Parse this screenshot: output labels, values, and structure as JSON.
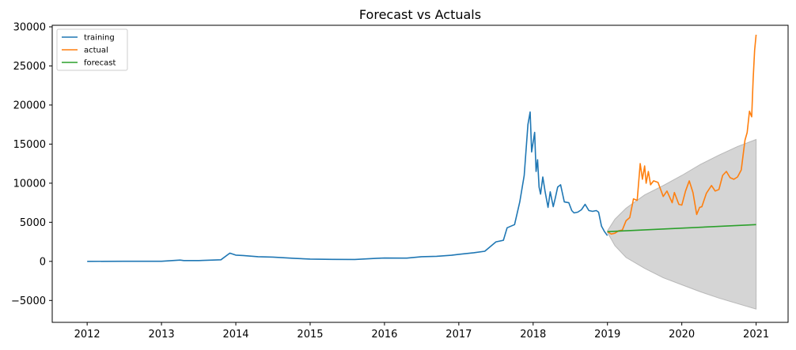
{
  "chart_data": {
    "type": "line",
    "title": "Forecast vs Actuals",
    "xlabel": "",
    "ylabel": "",
    "x_range": [
      2011.53,
      2021.43
    ],
    "y_range": [
      -7800,
      30200
    ],
    "x_ticks": [
      {
        "value": 2012,
        "label": "2012"
      },
      {
        "value": 2013,
        "label": "2013"
      },
      {
        "value": 2014,
        "label": "2014"
      },
      {
        "value": 2015,
        "label": "2015"
      },
      {
        "value": 2016,
        "label": "2016"
      },
      {
        "value": 2017,
        "label": "2017"
      },
      {
        "value": 2018,
        "label": "2018"
      },
      {
        "value": 2019,
        "label": "2019"
      },
      {
        "value": 2020,
        "label": "2020"
      },
      {
        "value": 2021,
        "label": "2021"
      }
    ],
    "y_ticks": [
      {
        "value": -5000,
        "label": "−5000"
      },
      {
        "value": 0,
        "label": "0"
      },
      {
        "value": 5000,
        "label": "5000"
      },
      {
        "value": 10000,
        "label": "10000"
      },
      {
        "value": 15000,
        "label": "15000"
      },
      {
        "value": 20000,
        "label": "20000"
      },
      {
        "value": 25000,
        "label": "25000"
      },
      {
        "value": 30000,
        "label": "30000"
      }
    ],
    "grid": false,
    "legend": {
      "placement": "top-left",
      "entries": [
        "training",
        "actual",
        "forecast"
      ]
    },
    "series": [
      {
        "name": "training",
        "color": "#1f77b4",
        "x": [
          2012.0,
          2012.5,
          2013.0,
          2013.25,
          2013.3,
          2013.5,
          2013.8,
          2013.92,
          2014.0,
          2014.1,
          2014.3,
          2014.5,
          2014.8,
          2015.0,
          2015.3,
          2015.6,
          2015.9,
          2016.0,
          2016.3,
          2016.5,
          2016.7,
          2016.9,
          2017.0,
          2017.2,
          2017.35,
          2017.5,
          2017.6,
          2017.65,
          2017.75,
          2017.82,
          2017.88,
          2017.93,
          2017.96,
          2017.98,
          2018.02,
          2018.04,
          2018.06,
          2018.08,
          2018.1,
          2018.13,
          2018.16,
          2018.2,
          2018.23,
          2018.27,
          2018.3,
          2018.33,
          2018.37,
          2018.42,
          2018.48,
          2018.52,
          2018.55,
          2018.6,
          2018.65,
          2018.7,
          2018.75,
          2018.8,
          2018.85,
          2018.88,
          2018.92,
          2018.96,
          2019.0
        ],
        "y": [
          5,
          10,
          13,
          160,
          100,
          100,
          200,
          1050,
          800,
          750,
          600,
          550,
          380,
          300,
          250,
          240,
          400,
          430,
          420,
          600,
          650,
          780,
          900,
          1100,
          1300,
          2500,
          2700,
          4300,
          4700,
          7600,
          11000,
          17500,
          19100,
          14000,
          16500,
          11500,
          13000,
          9500,
          8600,
          10800,
          9000,
          6900,
          8900,
          7000,
          8200,
          9500,
          9800,
          7600,
          7500,
          6500,
          6200,
          6300,
          6600,
          7300,
          6500,
          6400,
          6500,
          6300,
          4500,
          3800,
          3300
        ]
      },
      {
        "name": "actual",
        "color": "#ff7f0e",
        "x": [
          2019.0,
          2019.05,
          2019.1,
          2019.15,
          2019.2,
          2019.25,
          2019.3,
          2019.35,
          2019.4,
          2019.44,
          2019.47,
          2019.5,
          2019.52,
          2019.55,
          2019.58,
          2019.62,
          2019.68,
          2019.75,
          2019.8,
          2019.87,
          2019.9,
          2019.96,
          2020.0,
          2020.05,
          2020.1,
          2020.15,
          2020.2,
          2020.24,
          2020.27,
          2020.33,
          2020.4,
          2020.45,
          2020.5,
          2020.55,
          2020.6,
          2020.65,
          2020.7,
          2020.75,
          2020.8,
          2020.85,
          2020.88,
          2020.91,
          2020.94,
          2020.96,
          2020.98,
          2021.0
        ],
        "y": [
          3800,
          3500,
          3600,
          3900,
          4000,
          5200,
          5600,
          8000,
          7800,
          12500,
          10500,
          12200,
          10000,
          11500,
          9800,
          10300,
          10100,
          8300,
          9000,
          7500,
          8800,
          7300,
          7200,
          9000,
          10300,
          8800,
          6000,
          6900,
          7000,
          8700,
          9700,
          9000,
          9200,
          11000,
          11500,
          10700,
          10500,
          10800,
          11700,
          15500,
          16500,
          19200,
          18500,
          23200,
          27000,
          29000
        ]
      },
      {
        "name": "forecast",
        "color": "#2ca02c",
        "x": [
          2019.0,
          2021.0
        ],
        "y": [
          3800,
          4700
        ]
      }
    ],
    "confidence_band": {
      "color": "#b3b3b3",
      "x": [
        2019.0,
        2019.1,
        2019.25,
        2019.5,
        2019.75,
        2020.0,
        2020.25,
        2020.5,
        2020.75,
        2021.0
      ],
      "upper": [
        3900,
        5400,
        6800,
        8500,
        9700,
        11000,
        12400,
        13600,
        14700,
        15600
      ],
      "lower": [
        3700,
        2000,
        500,
        -900,
        -2100,
        -3000,
        -3900,
        -4700,
        -5400,
        -6100
      ]
    }
  }
}
